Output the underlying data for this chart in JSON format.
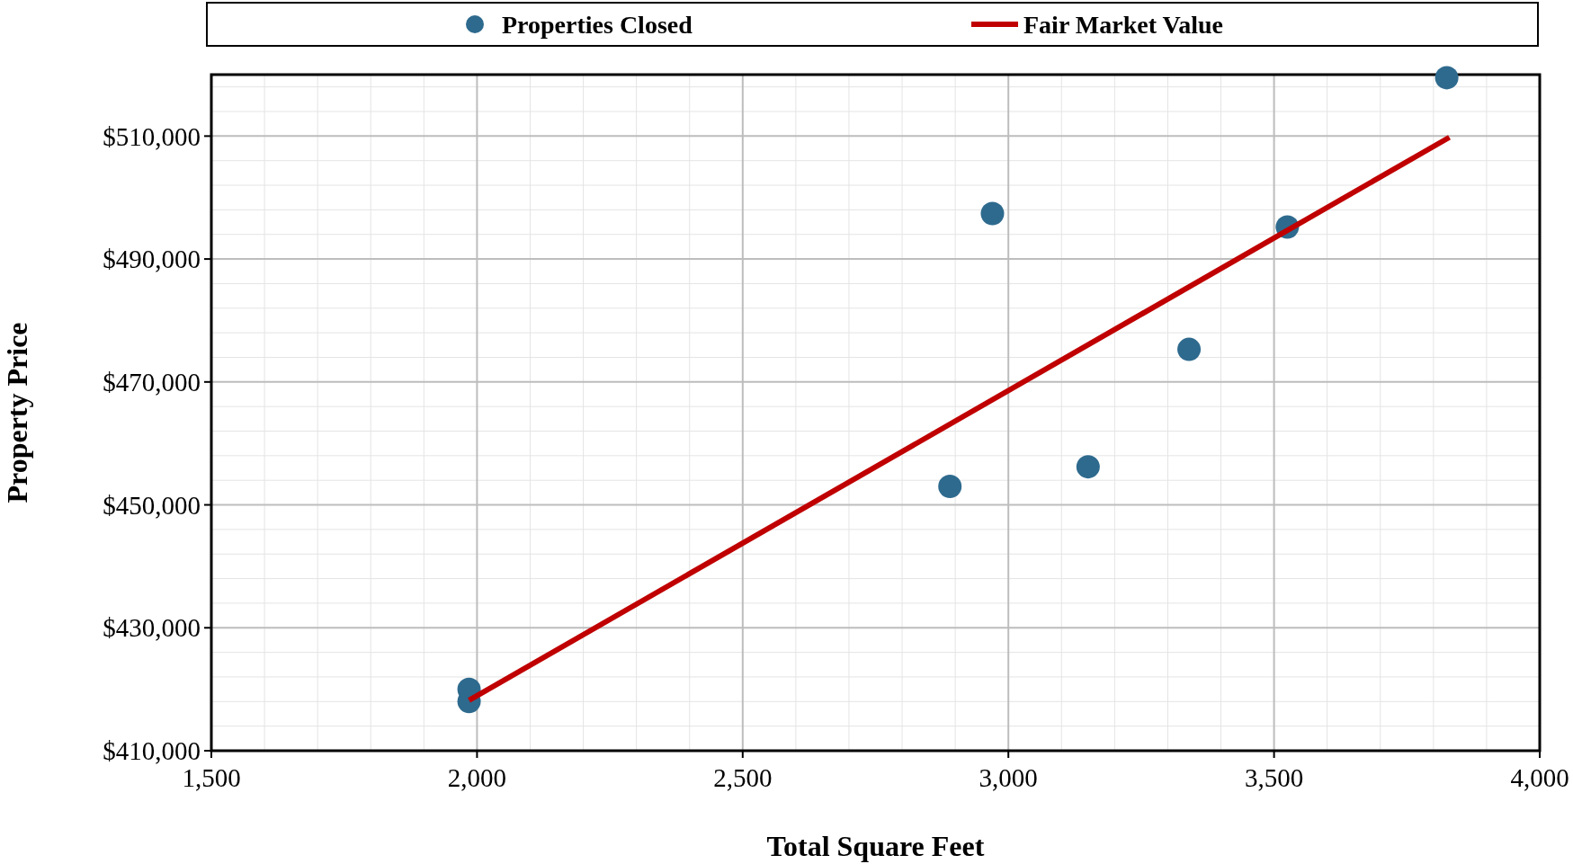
{
  "chart_data": {
    "type": "scatter",
    "xlabel": "Total Square Feet",
    "ylabel": "Property Price",
    "xlim": [
      1500,
      4000
    ],
    "ylim": [
      410000,
      520000
    ],
    "xticks": [
      {
        "value": 1500,
        "label": "1,500"
      },
      {
        "value": 2000,
        "label": "2,000"
      },
      {
        "value": 2500,
        "label": "2,500"
      },
      {
        "value": 3000,
        "label": "3,000"
      },
      {
        "value": 3500,
        "label": "3,500"
      },
      {
        "value": 4000,
        "label": "4,000"
      }
    ],
    "yticks": [
      {
        "value": 410000,
        "label": "$410,000"
      },
      {
        "value": 430000,
        "label": "$430,000"
      },
      {
        "value": 450000,
        "label": "$450,000"
      },
      {
        "value": 470000,
        "label": "$470,000"
      },
      {
        "value": 490000,
        "label": "$490,000"
      },
      {
        "value": 510000,
        "label": "$510,000"
      }
    ],
    "grid": true,
    "legend": "top",
    "series": [
      {
        "name": "Properties Closed",
        "marker": "circle",
        "color": "#2e6a8e",
        "x": [
          1985,
          1985,
          2890,
          2970,
          3150,
          3340,
          3525,
          3825
        ],
        "values": [
          420000,
          418000,
          453000,
          497400,
          456200,
          475300,
          495200,
          519500
        ]
      },
      {
        "name": "Fair Market Value",
        "type": "line",
        "color": "#c00000",
        "x": [
          1985,
          3830
        ],
        "values": [
          418200,
          509800
        ]
      }
    ]
  }
}
